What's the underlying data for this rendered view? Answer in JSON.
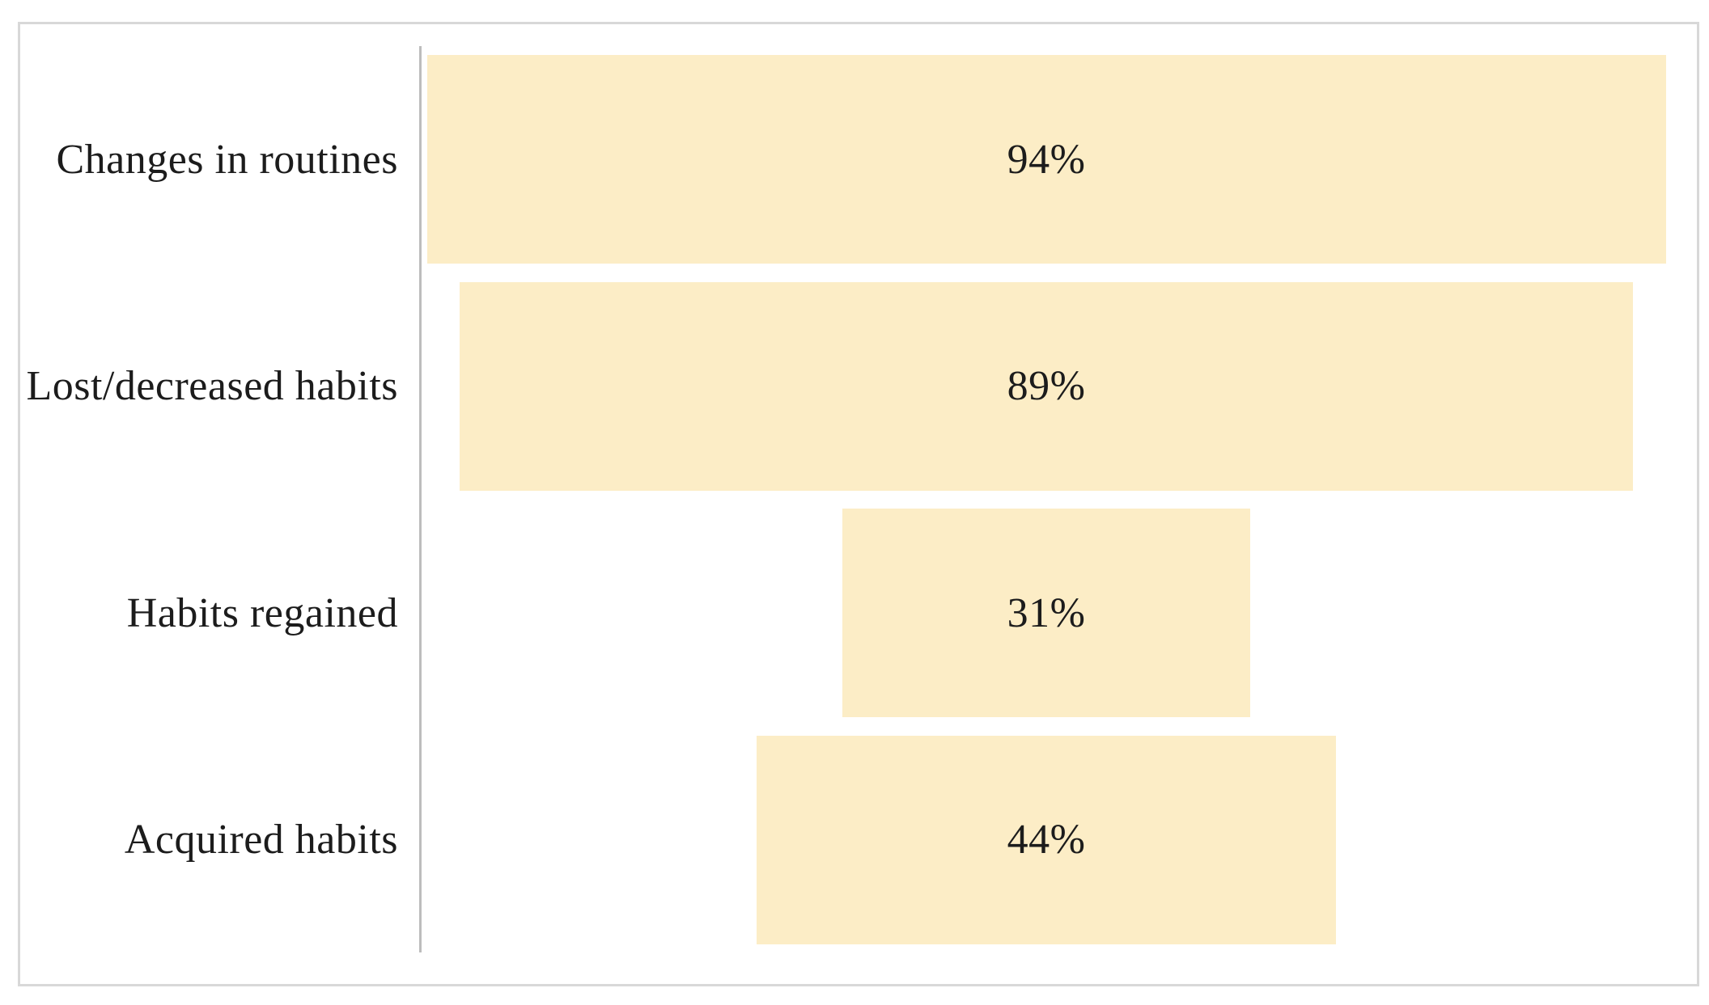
{
  "chart_data": {
    "type": "bar",
    "orientation": "horizontal",
    "style": "centered-funnel",
    "title": "",
    "xlabel": "",
    "ylabel": "",
    "categories": [
      "Changes in routines",
      "Lost/decreased habits",
      "Habits regained",
      "Acquired habits"
    ],
    "values": [
      94,
      89,
      31,
      44
    ],
    "value_labels": [
      "94%",
      "89%",
      "31%",
      "44%"
    ],
    "xlim": [
      0,
      94
    ],
    "grid": false,
    "legend": "none",
    "colors": {
      "bar_fill": "#FCEDC6",
      "axis_line": "#BDBDBD",
      "frame_border": "#D8D8D8",
      "text": "#1C1C1C",
      "background": "#FFFFFF"
    }
  }
}
